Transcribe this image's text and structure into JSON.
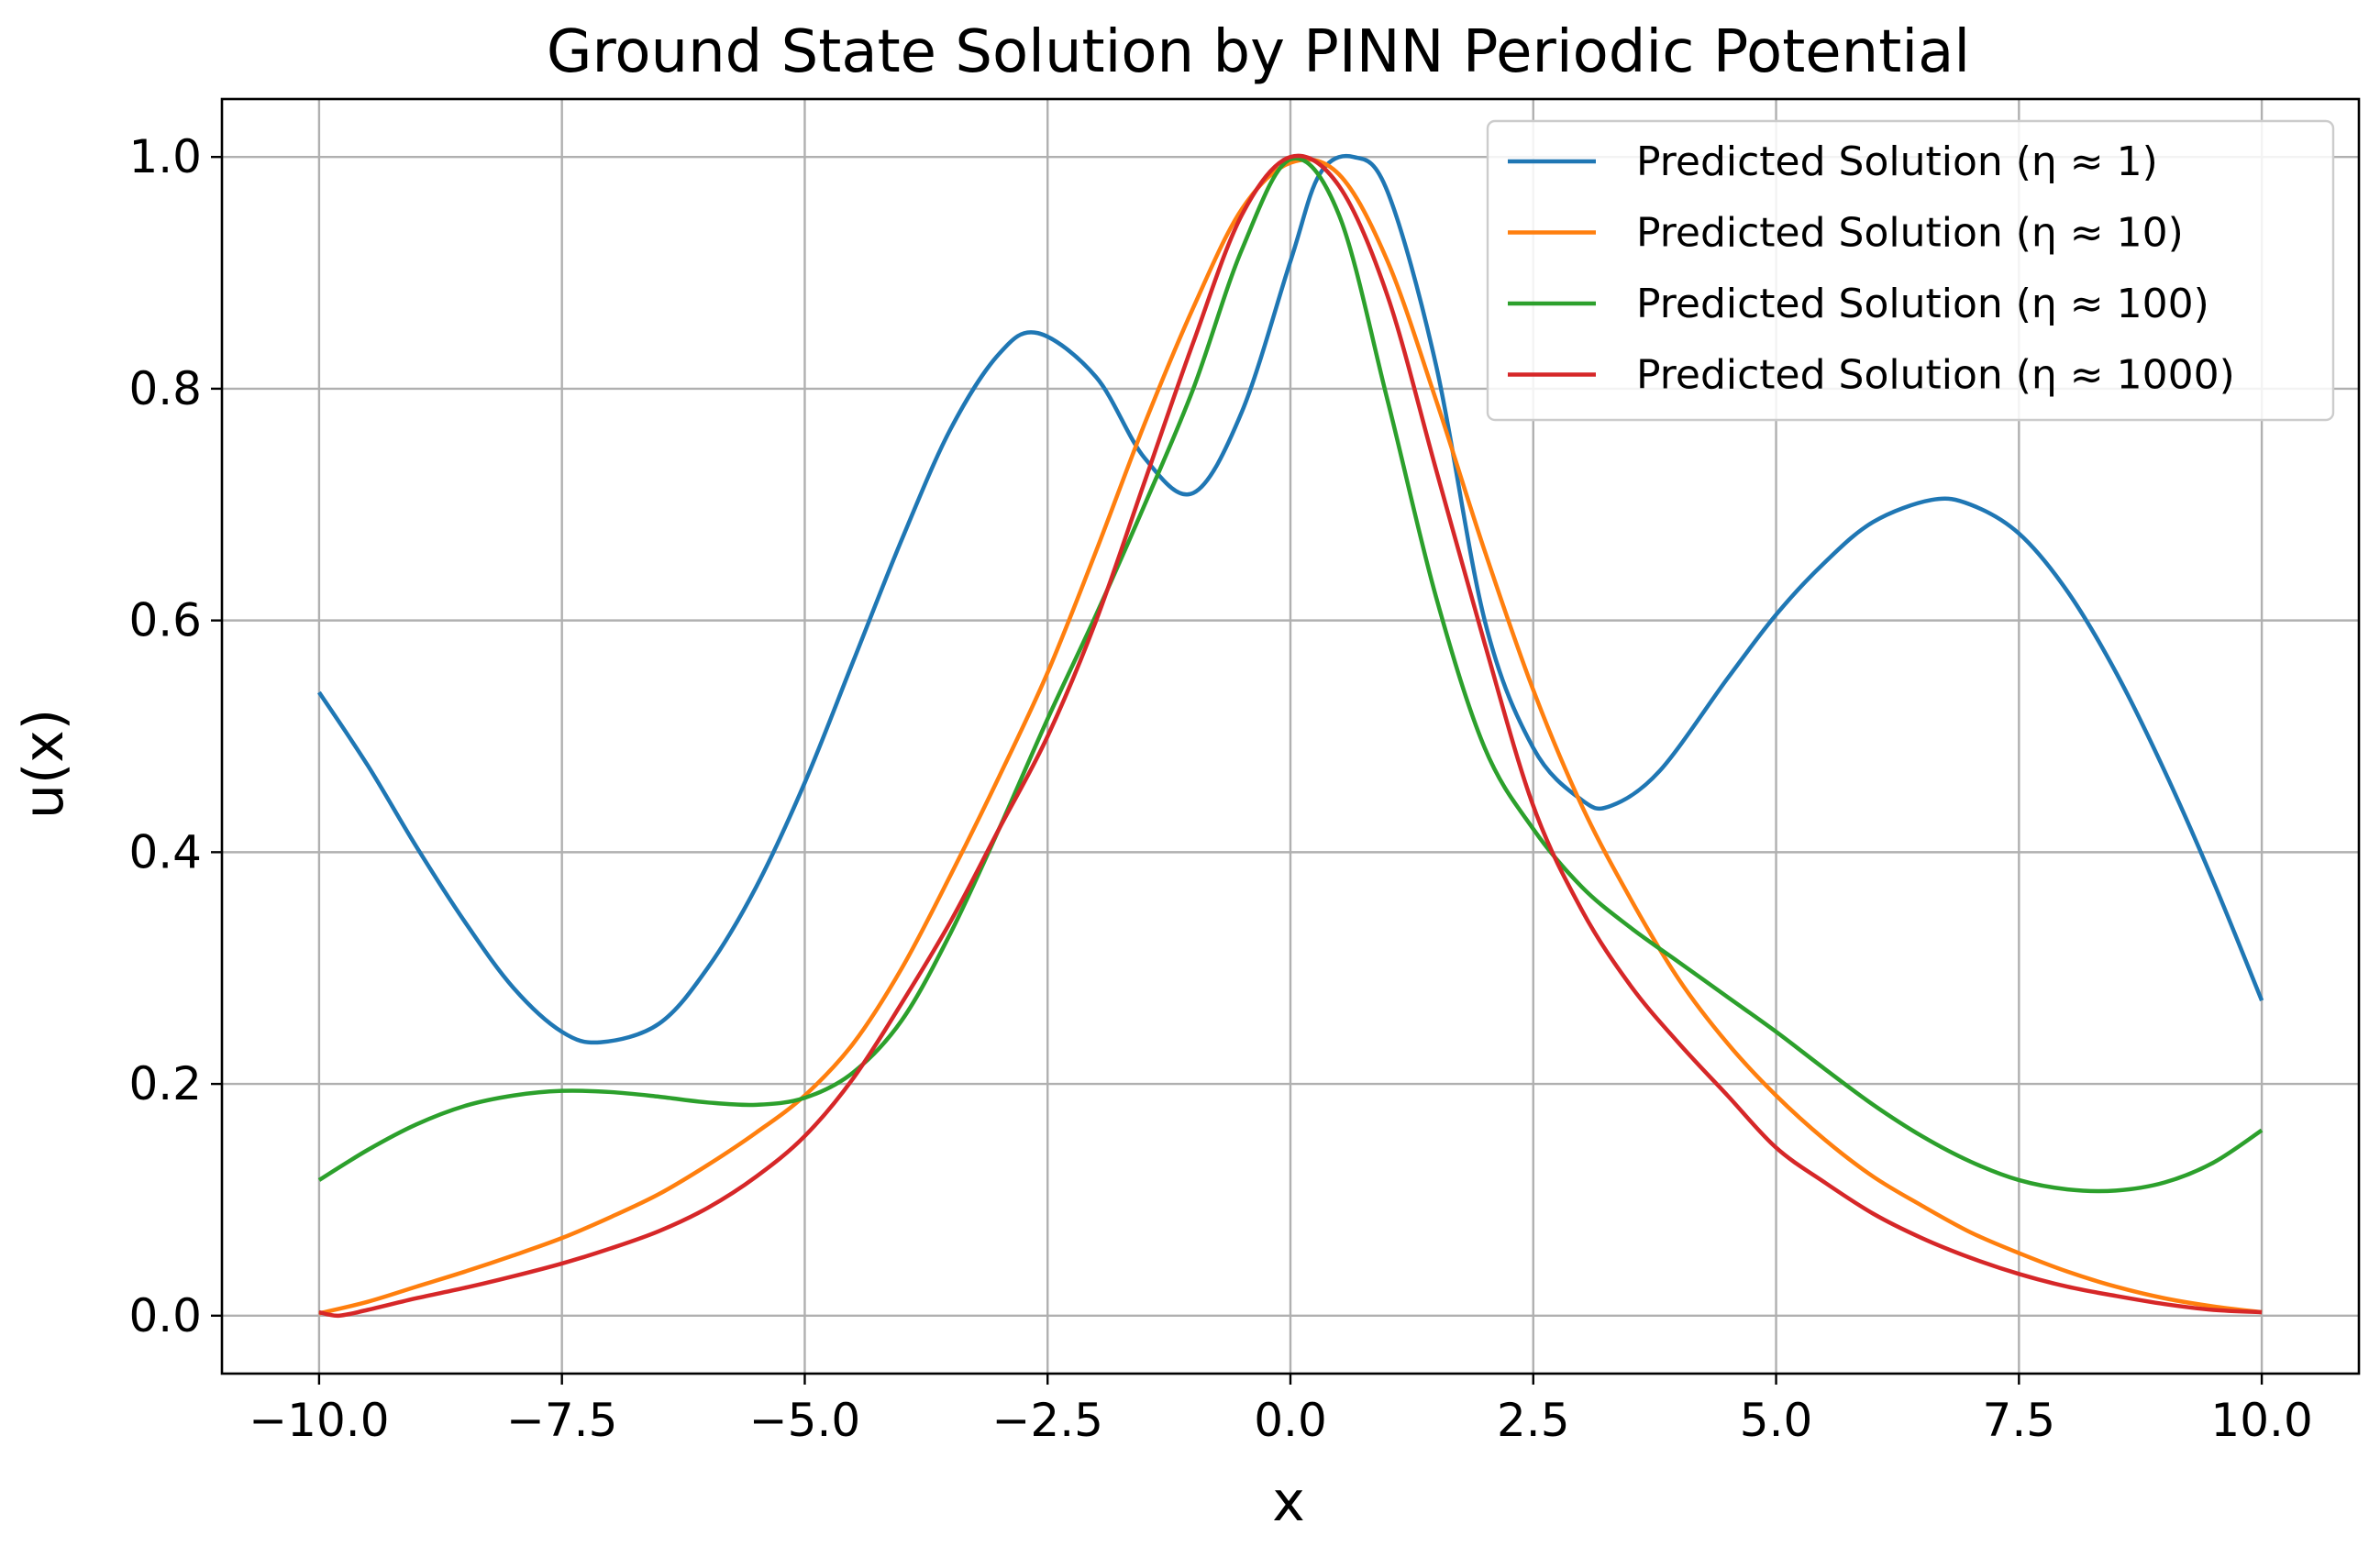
{
  "chart_data": {
    "type": "line",
    "title": "Ground State Solution by PINN Periodic Potential",
    "xlabel": "x",
    "ylabel": "u(x)",
    "xlim": [
      -11.0,
      11.0
    ],
    "ylim": [
      -0.05,
      1.05
    ],
    "xticks": [
      -10.0,
      -7.5,
      -5.0,
      -2.5,
      0.0,
      2.5,
      5.0,
      7.5,
      10.0
    ],
    "xtick_labels": [
      "−10.0",
      "−7.5",
      "−5.0",
      "−2.5",
      "0.0",
      "2.5",
      "5.0",
      "7.5",
      "10.0"
    ],
    "yticks": [
      0.0,
      0.2,
      0.4,
      0.6,
      0.8,
      1.0
    ],
    "ytick_labels": [
      "0.0",
      "0.2",
      "0.4",
      "0.6",
      "0.8",
      "1.0"
    ],
    "grid": true,
    "legend_position": "top-right",
    "series": [
      {
        "name": "Predicted Solution (η ≈ 1)",
        "color": "#1f77b4",
        "x": [
          -10,
          -9.5,
          -9,
          -8.5,
          -8,
          -7.5,
          -7.1,
          -6.5,
          -6,
          -5.5,
          -5,
          -4.5,
          -4,
          -3.5,
          -3,
          -2.6,
          -2,
          -1.5,
          -1.0,
          -0.5,
          0,
          0.3,
          0.65,
          1,
          1.5,
          2,
          2.5,
          3,
          3.3,
          3.8,
          4.5,
          5,
          5.5,
          6,
          6.6,
          7,
          7.5,
          8,
          8.5,
          9,
          9.5,
          10
        ],
        "y": [
          0.538,
          0.475,
          0.405,
          0.34,
          0.283,
          0.245,
          0.236,
          0.252,
          0.3,
          0.37,
          0.46,
          0.565,
          0.67,
          0.765,
          0.83,
          0.848,
          0.81,
          0.74,
          0.71,
          0.78,
          0.91,
          0.985,
          1.0,
          0.97,
          0.82,
          0.6,
          0.49,
          0.445,
          0.44,
          0.47,
          0.55,
          0.605,
          0.65,
          0.685,
          0.704,
          0.7,
          0.675,
          0.625,
          0.555,
          0.47,
          0.375,
          0.272
        ]
      },
      {
        "name": "Predicted Solution (η ≈ 10)",
        "color": "#ff7f0e",
        "x": [
          -10,
          -9.5,
          -9,
          -8.5,
          -8,
          -7.5,
          -7,
          -6.5,
          -6,
          -5.5,
          -5,
          -4.5,
          -4,
          -3.5,
          -3,
          -2.5,
          -2,
          -1.5,
          -1,
          -0.5,
          0,
          0.5,
          1,
          1.5,
          2,
          2.5,
          3,
          3.5,
          4,
          4.5,
          5,
          5.5,
          6,
          6.5,
          7,
          7.5,
          8,
          8.5,
          9,
          9.5,
          10
        ],
        "y": [
          0.002,
          0.012,
          0.025,
          0.038,
          0.052,
          0.067,
          0.085,
          0.105,
          0.13,
          0.158,
          0.19,
          0.235,
          0.3,
          0.38,
          0.465,
          0.555,
          0.66,
          0.77,
          0.87,
          0.955,
          0.995,
          0.985,
          0.91,
          0.79,
          0.66,
          0.54,
          0.44,
          0.36,
          0.29,
          0.235,
          0.19,
          0.152,
          0.12,
          0.095,
          0.072,
          0.054,
          0.038,
          0.025,
          0.015,
          0.008,
          0.003
        ]
      },
      {
        "name": "Predicted Solution (η ≈ 100)",
        "color": "#2ca02c",
        "x": [
          -10,
          -9.5,
          -9,
          -8.5,
          -8,
          -7.5,
          -7,
          -6.5,
          -6,
          -5.5,
          -5,
          -4.5,
          -4,
          -3.5,
          -3,
          -2.5,
          -2,
          -1.5,
          -1,
          -0.5,
          0,
          0.5,
          1,
          1.5,
          2,
          2.5,
          3,
          3.5,
          4,
          4.5,
          5,
          5.5,
          6,
          6.5,
          7,
          7.5,
          8,
          8.5,
          9,
          9.5,
          10
        ],
        "y": [
          0.117,
          0.143,
          0.165,
          0.181,
          0.19,
          0.194,
          0.193,
          0.189,
          0.184,
          0.182,
          0.188,
          0.21,
          0.255,
          0.33,
          0.42,
          0.515,
          0.605,
          0.7,
          0.8,
          0.92,
          0.998,
          0.95,
          0.79,
          0.62,
          0.49,
          0.42,
          0.37,
          0.335,
          0.305,
          0.275,
          0.245,
          0.213,
          0.182,
          0.155,
          0.133,
          0.117,
          0.109,
          0.108,
          0.115,
          0.132,
          0.16
        ]
      },
      {
        "name": "Predicted Solution (η ≈ 1000)",
        "color": "#d62728",
        "x": [
          -10,
          -9.8,
          -9.5,
          -9,
          -8.5,
          -8,
          -7.5,
          -7,
          -6.5,
          -6,
          -5.5,
          -5,
          -4.5,
          -4,
          -3.5,
          -3,
          -2.5,
          -2,
          -1.5,
          -1,
          -0.5,
          0,
          0.5,
          1,
          1.5,
          2,
          2.5,
          3,
          3.5,
          4,
          4.5,
          5,
          5.5,
          6,
          6.5,
          7,
          7.5,
          8,
          8.5,
          9,
          9.5,
          10
        ],
        "y": [
          0.003,
          0.0,
          0.005,
          0.015,
          0.024,
          0.034,
          0.045,
          0.058,
          0.073,
          0.093,
          0.12,
          0.155,
          0.205,
          0.27,
          0.34,
          0.42,
          0.5,
          0.6,
          0.72,
          0.84,
          0.95,
          1.0,
          0.975,
          0.88,
          0.73,
          0.58,
          0.44,
          0.35,
          0.285,
          0.235,
          0.19,
          0.145,
          0.115,
          0.088,
          0.067,
          0.05,
          0.036,
          0.025,
          0.017,
          0.01,
          0.005,
          0.003
        ]
      }
    ]
  }
}
